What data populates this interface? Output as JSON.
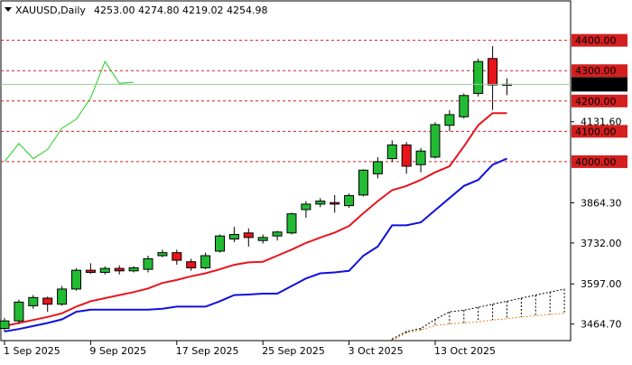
{
  "header": {
    "symbol_line": "XAUUSD,Daily",
    "ohlc": "4253.00 4274.80 4219.02 4254.98"
  },
  "colors": {
    "up": "#22bb33",
    "down": "#e8141b",
    "fast_ma": "#e8141b",
    "slow_ma": "#1010dd",
    "chikou": "#22cc22",
    "cloud_a": "#000000",
    "cloud_b": "#e8831a",
    "level_line": "#d41f1f",
    "price_line": "#99cc99",
    "price_tag_bg": "#000000",
    "price_tag_text": "#ffffff",
    "level_tag_bg": "#d41f1f",
    "level_tag_text": "#ffffff"
  },
  "chart_data": {
    "type": "candlestick",
    "title": "",
    "ylim": [
      3410,
      4530
    ],
    "x_ticks": [
      {
        "label": "1 Sep 2025",
        "index": 0
      },
      {
        "label": "9 Sep 2025",
        "index": 6
      },
      {
        "label": "17 Sep 2025",
        "index": 12
      },
      {
        "label": "25 Sep 2025",
        "index": 18
      },
      {
        "label": "3 Oct 2025",
        "index": 24
      },
      {
        "label": "13 Oct 2025",
        "index": 30
      }
    ],
    "y_ticks": [
      {
        "label": "4131.60",
        "value": 4131.6
      },
      {
        "label": "3864.30",
        "value": 3864.3
      },
      {
        "label": "3732.00",
        "value": 3732.0
      },
      {
        "label": "3597.00",
        "value": 3597.0
      },
      {
        "label": "3464.70",
        "value": 3464.7
      }
    ],
    "levels": [
      {
        "label": "4400.00",
        "value": 4400.0
      },
      {
        "label": "4300.00",
        "value": 4300.0
      },
      {
        "label": "4200.00",
        "value": 4200.0
      },
      {
        "label": "4100.00",
        "value": 4100.0
      },
      {
        "label": "4000.00",
        "value": 4000.0
      }
    ],
    "current_price": {
      "label": "4254.98",
      "value": 4254.98
    },
    "candles": [
      {
        "o": 3450,
        "h": 3485,
        "l": 3440,
        "c": 3475
      },
      {
        "o": 3475,
        "h": 3545,
        "l": 3465,
        "c": 3537
      },
      {
        "o": 3525,
        "h": 3560,
        "l": 3515,
        "c": 3552
      },
      {
        "o": 3550,
        "h": 3555,
        "l": 3505,
        "c": 3530
      },
      {
        "o": 3530,
        "h": 3590,
        "l": 3525,
        "c": 3580
      },
      {
        "o": 3580,
        "h": 3648,
        "l": 3575,
        "c": 3642
      },
      {
        "o": 3642,
        "h": 3665,
        "l": 3630,
        "c": 3635
      },
      {
        "o": 3635,
        "h": 3655,
        "l": 3628,
        "c": 3648
      },
      {
        "o": 3648,
        "h": 3658,
        "l": 3628,
        "c": 3640
      },
      {
        "o": 3640,
        "h": 3655,
        "l": 3635,
        "c": 3650
      },
      {
        "o": 3645,
        "h": 3690,
        "l": 3635,
        "c": 3680
      },
      {
        "o": 3690,
        "h": 3710,
        "l": 3685,
        "c": 3700
      },
      {
        "o": 3700,
        "h": 3710,
        "l": 3660,
        "c": 3675
      },
      {
        "o": 3670,
        "h": 3680,
        "l": 3640,
        "c": 3650
      },
      {
        "o": 3650,
        "h": 3700,
        "l": 3645,
        "c": 3690
      },
      {
        "o": 3705,
        "h": 3760,
        "l": 3700,
        "c": 3755
      },
      {
        "o": 3745,
        "h": 3785,
        "l": 3735,
        "c": 3760
      },
      {
        "o": 3765,
        "h": 3780,
        "l": 3720,
        "c": 3750
      },
      {
        "o": 3740,
        "h": 3760,
        "l": 3730,
        "c": 3750
      },
      {
        "o": 3755,
        "h": 3772,
        "l": 3740,
        "c": 3768
      },
      {
        "o": 3765,
        "h": 3832,
        "l": 3760,
        "c": 3828
      },
      {
        "o": 3842,
        "h": 3870,
        "l": 3815,
        "c": 3860
      },
      {
        "o": 3860,
        "h": 3880,
        "l": 3850,
        "c": 3870
      },
      {
        "o": 3865,
        "h": 3890,
        "l": 3832,
        "c": 3860
      },
      {
        "o": 3855,
        "h": 3895,
        "l": 3848,
        "c": 3888
      },
      {
        "o": 3890,
        "h": 3975,
        "l": 3885,
        "c": 3972
      },
      {
        "o": 3960,
        "h": 4015,
        "l": 3945,
        "c": 4000
      },
      {
        "o": 4010,
        "h": 4070,
        "l": 4000,
        "c": 4055
      },
      {
        "o": 4055,
        "h": 4065,
        "l": 3960,
        "c": 3985
      },
      {
        "o": 3990,
        "h": 4045,
        "l": 3965,
        "c": 4035
      },
      {
        "o": 4015,
        "h": 4130,
        "l": 4010,
        "c": 4122
      },
      {
        "o": 4120,
        "h": 4170,
        "l": 4100,
        "c": 4155
      },
      {
        "o": 4148,
        "h": 4225,
        "l": 4142,
        "c": 4218
      },
      {
        "o": 4225,
        "h": 4340,
        "l": 4215,
        "c": 4330
      },
      {
        "o": 4340,
        "h": 4381,
        "l": 4170,
        "c": 4253
      },
      {
        "o": 4253,
        "h": 4275,
        "l": 4219,
        "c": 4255
      }
    ],
    "fast_ma": [
      3458,
      3468,
      3478,
      3488,
      3500,
      3522,
      3540,
      3550,
      3560,
      3570,
      3582,
      3600,
      3610,
      3622,
      3632,
      3645,
      3660,
      3668,
      3670,
      3690,
      3710,
      3732,
      3750,
      3766,
      3788,
      3830,
      3870,
      3906,
      3920,
      3940,
      3965,
      3985,
      4050,
      4120,
      4160,
      4160
    ],
    "slow_ma": [
      3440,
      3448,
      3458,
      3468,
      3480,
      3505,
      3512,
      3512,
      3512,
      3512,
      3512,
      3515,
      3522,
      3522,
      3522,
      3540,
      3560,
      3562,
      3565,
      3565,
      3590,
      3615,
      3632,
      3635,
      3640,
      3690,
      3720,
      3790,
      3790,
      3800,
      3840,
      3880,
      3920,
      3940,
      3990,
      4010
    ],
    "chikou": [
      {
        "i": 0,
        "v": 4000
      },
      {
        "i": 1,
        "v": 4060
      },
      {
        "i": 2,
        "v": 4010
      },
      {
        "i": 3,
        "v": 4040
      },
      {
        "i": 4,
        "v": 4110
      },
      {
        "i": 5,
        "v": 4140
      },
      {
        "i": 6,
        "v": 4210
      },
      {
        "i": 7,
        "v": 4330
      },
      {
        "i": 8,
        "v": 4258
      },
      {
        "i": 9,
        "v": 4262
      }
    ],
    "cloud_a": [
      {
        "i": 27,
        "v": 3415
      },
      {
        "i": 28,
        "v": 3440
      },
      {
        "i": 29,
        "v": 3450
      },
      {
        "i": 30,
        "v": 3480
      },
      {
        "i": 31,
        "v": 3505
      },
      {
        "i": 32,
        "v": 3510
      },
      {
        "i": 33,
        "v": 3520
      },
      {
        "i": 34,
        "v": 3530
      },
      {
        "i": 35,
        "v": 3540
      },
      {
        "i": 36,
        "v": 3550
      },
      {
        "i": 37,
        "v": 3560
      },
      {
        "i": 38,
        "v": 3570
      },
      {
        "i": 39,
        "v": 3580
      }
    ],
    "cloud_b": [
      {
        "i": 27,
        "v": 3410
      },
      {
        "i": 28,
        "v": 3435
      },
      {
        "i": 29,
        "v": 3445
      },
      {
        "i": 30,
        "v": 3460
      },
      {
        "i": 31,
        "v": 3465
      },
      {
        "i": 32,
        "v": 3468
      },
      {
        "i": 33,
        "v": 3472
      },
      {
        "i": 34,
        "v": 3478
      },
      {
        "i": 35,
        "v": 3482
      },
      {
        "i": 36,
        "v": 3488
      },
      {
        "i": 37,
        "v": 3492
      },
      {
        "i": 38,
        "v": 3496
      },
      {
        "i": 39,
        "v": 3500
      }
    ]
  }
}
